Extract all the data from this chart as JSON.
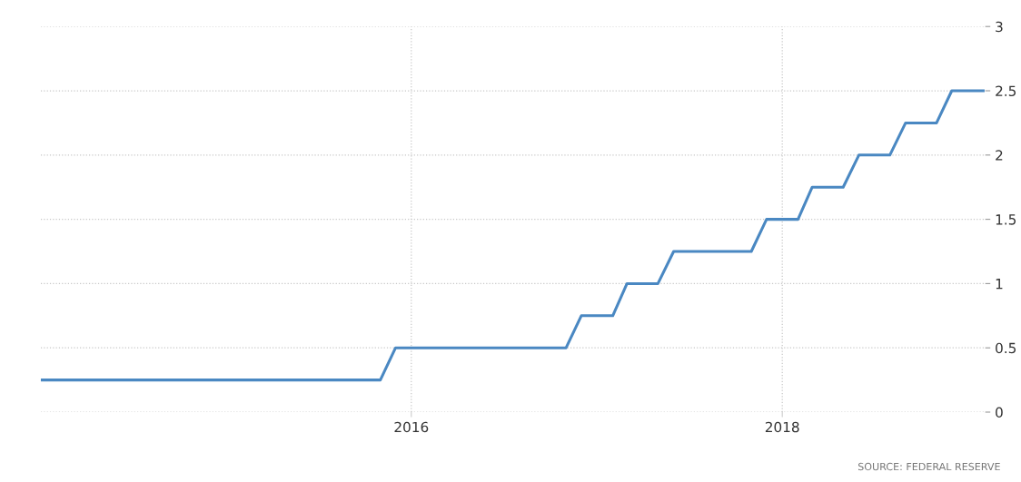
{
  "chart_data": {
    "type": "line",
    "color": "#4a88c2",
    "x": [
      "2014-01",
      "2015-11",
      "2015-12",
      "2016-11",
      "2016-12",
      "2017-02",
      "2017-03",
      "2017-05",
      "2017-06",
      "2017-11",
      "2017-12",
      "2018-02",
      "2018-03",
      "2018-05",
      "2018-06",
      "2018-08",
      "2018-09",
      "2018-11",
      "2018-12",
      "2019-02"
    ],
    "values": [
      0.25,
      0.25,
      0.5,
      0.5,
      0.75,
      0.75,
      1.0,
      1.0,
      1.25,
      1.25,
      1.5,
      1.5,
      1.75,
      1.75,
      2.0,
      2.0,
      2.25,
      2.25,
      2.5,
      2.5
    ],
    "xlim": [
      "2014-01",
      "2019-02-05"
    ],
    "xticks": [
      {
        "value": "2016",
        "label": "2016"
      },
      {
        "value": "2018",
        "label": "2018"
      }
    ],
    "ylim": [
      0,
      3
    ],
    "yticks": [
      0,
      0.5,
      1,
      1.5,
      2,
      2.5,
      3
    ],
    "grid": true,
    "line_style": "solid",
    "marker": "none",
    "annotations": [
      "SOURCE: FEDERAL RESERVE"
    ]
  }
}
